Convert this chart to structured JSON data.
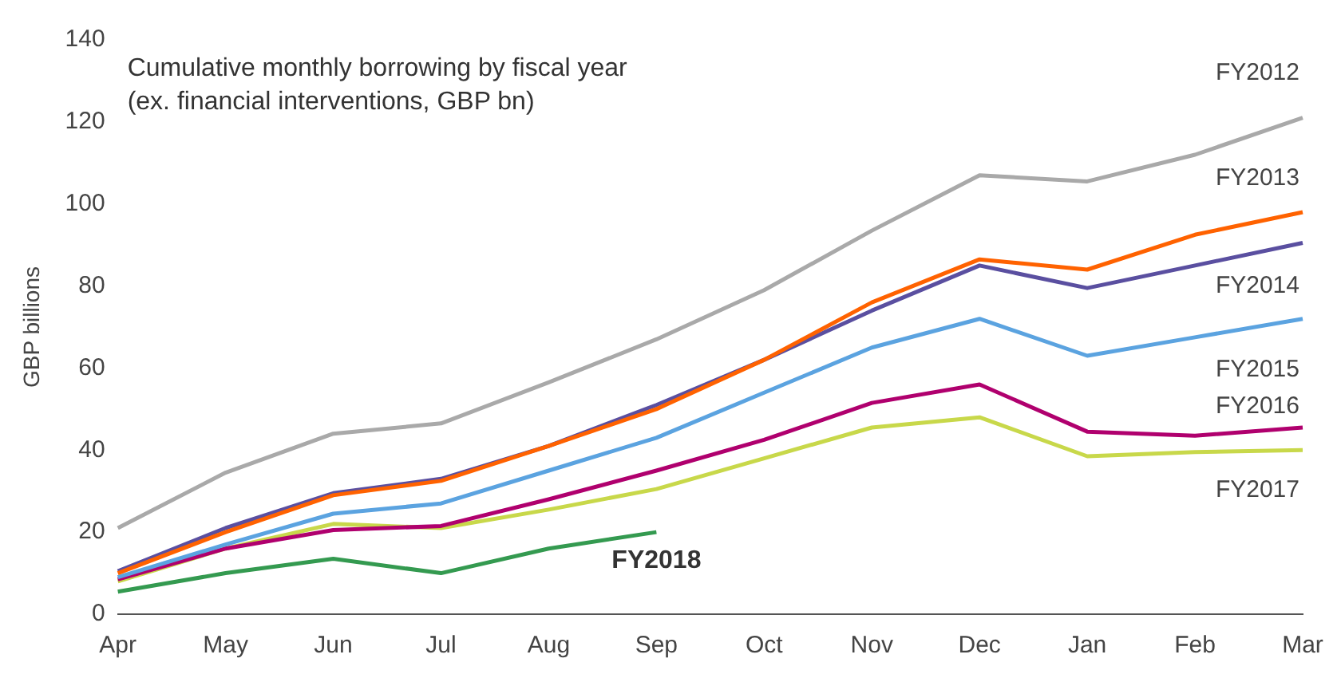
{
  "chart_data": {
    "type": "line",
    "ylabel": "GBP billions",
    "annotations": [
      "Cumulative monthly borrowing by fiscal year (ex. financial interventions, GBP bn)"
    ],
    "categories": [
      "Apr",
      "May",
      "Jun",
      "Jul",
      "Aug",
      "Sep",
      "Oct",
      "Nov",
      "Dec",
      "Jan",
      "Feb",
      "Mar"
    ],
    "ylim": [
      0,
      140
    ],
    "yticks": [
      0,
      20,
      40,
      60,
      80,
      100,
      120,
      140
    ],
    "grid": false,
    "legend": false,
    "marker": "none",
    "line_style": "solid",
    "series": [
      {
        "name": "FY2012",
        "color": "#a9a9a9",
        "values": [
          21,
          34.5,
          44,
          46.5,
          56.5,
          67,
          79,
          93.5,
          107,
          105.5,
          112,
          121
        ]
      },
      {
        "name": "FY2013",
        "color": "#ff6200",
        "values": [
          10,
          20,
          29,
          32.5,
          41,
          50,
          62,
          76,
          86.5,
          84,
          92.5,
          98
        ]
      },
      {
        "name": "FY2014",
        "color": "#5a4fa0",
        "values": [
          10.5,
          21,
          29.5,
          33,
          41,
          51,
          62,
          74,
          85,
          79.5,
          85,
          90.5
        ]
      },
      {
        "name": "FY2015",
        "color": "#5ba3e0",
        "values": [
          9,
          17,
          24.5,
          27,
          35,
          43,
          54,
          65,
          72,
          63,
          67.5,
          72
        ]
      },
      {
        "name": "FY2016",
        "color": "#b0006e",
        "values": [
          8.5,
          16,
          20.5,
          21.5,
          28,
          35,
          42.5,
          51.5,
          56,
          44.5,
          43.5,
          45.5
        ]
      },
      {
        "name": "FY2017",
        "color": "#c8d84a",
        "values": [
          8,
          16,
          22,
          21,
          25.5,
          30.5,
          38,
          45.5,
          48,
          38.5,
          39.5,
          40
        ]
      },
      {
        "name": "FY2018",
        "color": "#349a50",
        "values": [
          5.5,
          10,
          13.5,
          10,
          16,
          20,
          null,
          null,
          null,
          null,
          null,
          null
        ]
      }
    ]
  }
}
